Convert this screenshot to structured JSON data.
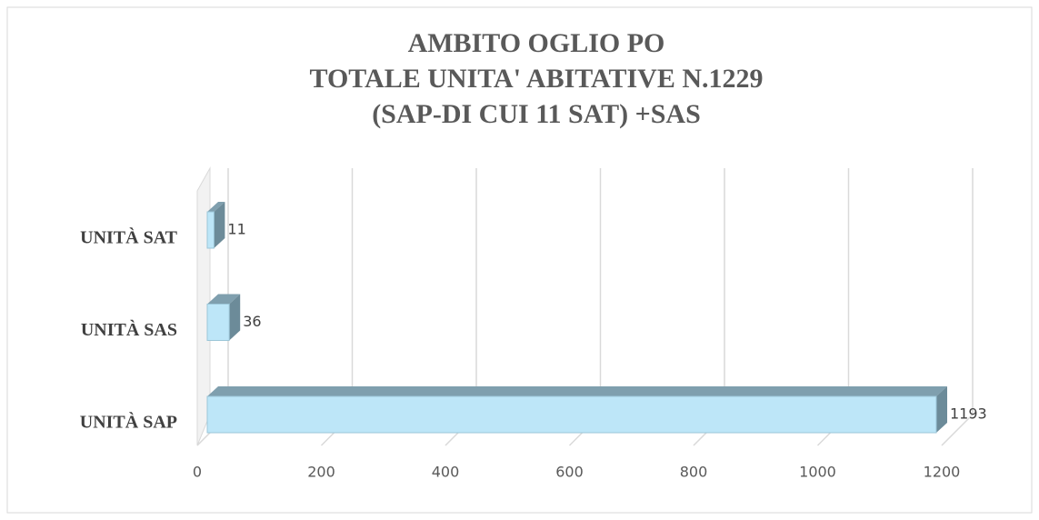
{
  "chart_data": {
    "type": "bar",
    "orientation": "horizontal",
    "title": [
      "AMBITO OGLIO PO",
      "TOTALE UNITA' ABITATIVE N.1229",
      "(SAP-DI CUI 11 SAT) +SAS"
    ],
    "categories": [
      "UNITÀ SAT",
      "UNITÀ SAS",
      "UNITÀ SAP"
    ],
    "values": [
      11,
      36,
      1193
    ],
    "color": "#bde6f8",
    "xlim": [
      0,
      1200
    ],
    "xticks": [
      0,
      200,
      400,
      600,
      800,
      1000,
      1200
    ],
    "grid": true
  }
}
